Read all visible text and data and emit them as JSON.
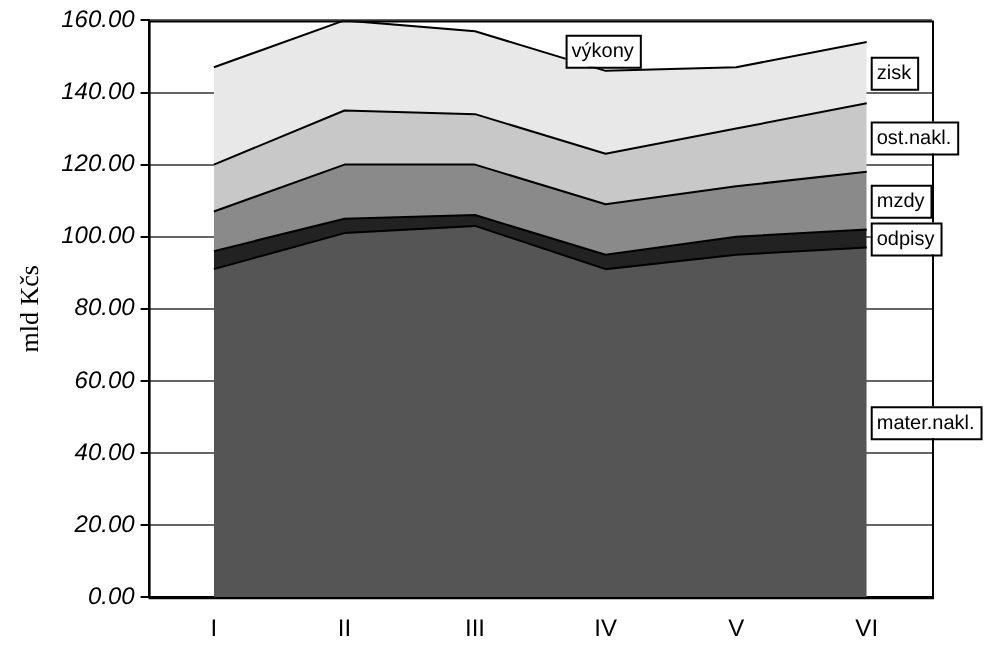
{
  "chart_data": {
    "type": "area",
    "stacked": true,
    "ylabel": "mld Kčs",
    "categories": [
      "I",
      "II",
      "III",
      "IV",
      "V",
      "VI"
    ],
    "series": [
      {
        "name": "mater.nakl.",
        "color": "#555555",
        "values": [
          91,
          101,
          103,
          91,
          95,
          97
        ]
      },
      {
        "name": "odpisy",
        "color": "#222222",
        "values": [
          5,
          4,
          3,
          4,
          5,
          5
        ]
      },
      {
        "name": "mzdy",
        "color": "#8a8a8a",
        "values": [
          11,
          15,
          14,
          14,
          14,
          16
        ]
      },
      {
        "name": "ost.nakl.",
        "color": "#c8c8c8",
        "values": [
          13,
          15,
          14,
          14,
          16,
          19
        ]
      },
      {
        "name": "zisk",
        "color": "#e8e8e8",
        "values": [
          27,
          25,
          23,
          23,
          17,
          17
        ]
      }
    ],
    "annotations": [
      {
        "text": "výkony",
        "x": "IV",
        "y": 146
      }
    ],
    "ylim": [
      0,
      160
    ],
    "yticks": [
      {
        "value": 0,
        "label": "0.00"
      },
      {
        "value": 20,
        "label": "20.00"
      },
      {
        "value": 40,
        "label": "40.00"
      },
      {
        "value": 60,
        "label": "60.00"
      },
      {
        "value": 80,
        "label": "80.00"
      },
      {
        "value": 100,
        "label": "100.00"
      },
      {
        "value": 120,
        "label": "120.00"
      },
      {
        "value": 140,
        "label": "140.00"
      },
      {
        "value": 160,
        "label": "160.00"
      }
    ],
    "grid": "y",
    "legend": "right",
    "line_style": "solid",
    "marker": "none"
  }
}
